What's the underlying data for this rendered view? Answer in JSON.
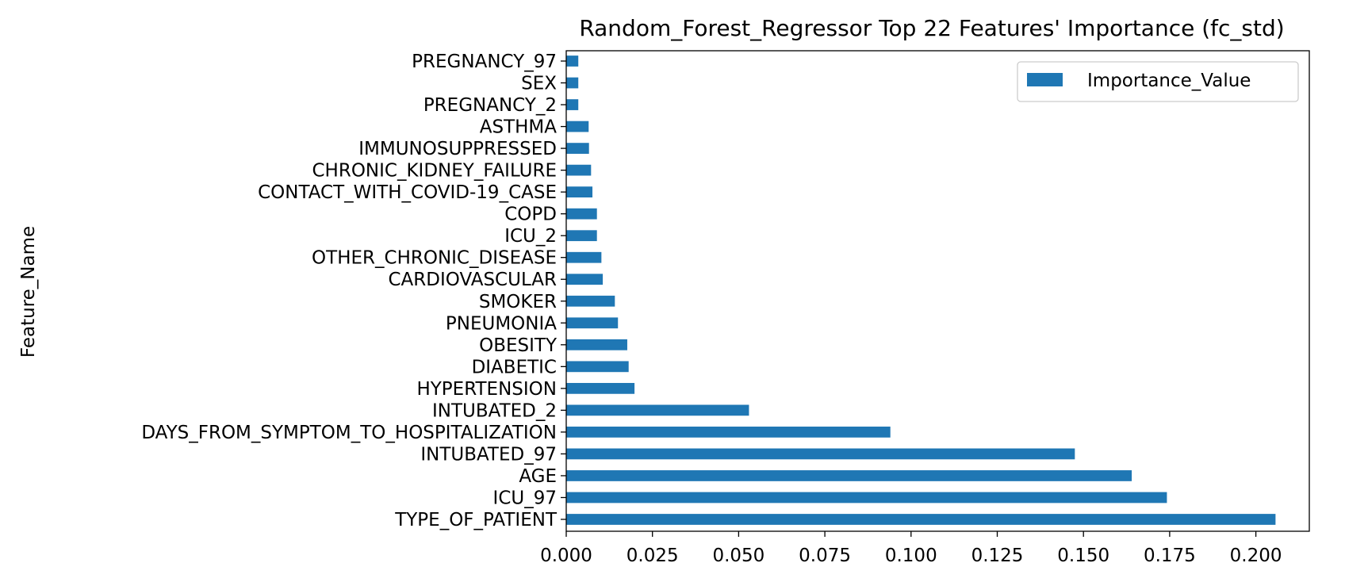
{
  "chart_data": {
    "type": "bar",
    "orientation": "horizontal",
    "title": "Random_Forest_Regressor Top 22 Features' Importance (fc_std)",
    "xlabel": "",
    "ylabel": "Feature_Name",
    "xlim": [
      0,
      0.2155
    ],
    "x_ticks": [
      "0.000",
      "0.025",
      "0.050",
      "0.075",
      "0.100",
      "0.125",
      "0.150",
      "0.175",
      "0.200"
    ],
    "grid": false,
    "legend_position": "top-right",
    "bar_color": "#1f77b4",
    "categories": [
      "TYPE_OF_PATIENT",
      "ICU_97",
      "AGE",
      "INTUBATED_97",
      "DAYS_FROM_SYMPTOM_TO_HOSPITALIZATION",
      "INTUBATED_2",
      "HYPERTENSION",
      "DIABETIC",
      "OBESITY",
      "PNEUMONIA",
      "SMOKER",
      "CARDIOVASCULAR",
      "OTHER_CHRONIC_DISEASE",
      "ICU_2",
      "COPD",
      "CONTACT_WITH_COVID-19_CASE",
      "CHRONIC_KIDNEY_FAILURE",
      "IMMUNOSUPPRESSED",
      "ASTHMA",
      "PREGNANCY_2",
      "SEX",
      "PREGNANCY_97"
    ],
    "series": [
      {
        "name": "Importance_Value",
        "values": [
          0.2057,
          0.1742,
          0.164,
          0.1475,
          0.094,
          0.053,
          0.0198,
          0.0181,
          0.0177,
          0.015,
          0.0141,
          0.0106,
          0.0102,
          0.0089,
          0.0089,
          0.0076,
          0.0072,
          0.0066,
          0.0065,
          0.0035,
          0.0035,
          0.0035
        ]
      }
    ]
  }
}
